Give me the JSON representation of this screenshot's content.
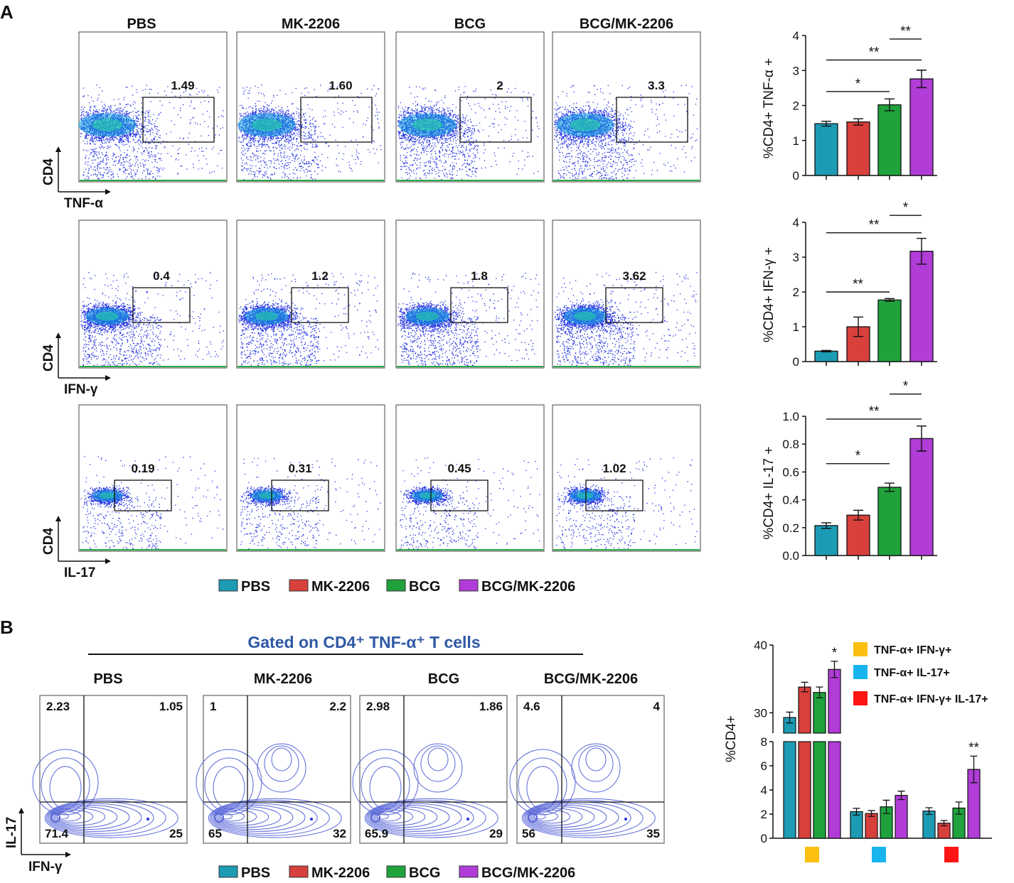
{
  "panel_labels": {
    "a": "A",
    "b": "B"
  },
  "colors": {
    "PBS": "#1d9bb4",
    "MK-2206": "#d8403c",
    "BCG": "#1fa23c",
    "BCG/MK-2206": "#b13cd8",
    "dots": "#2030e0",
    "contour": "#5866d8"
  },
  "groups": [
    "PBS",
    "MK-2206",
    "BCG",
    "BCG/MK-2206"
  ],
  "flow_rows": [
    {
      "x_axis": "TNF-α",
      "y_axis": "CD4",
      "gate_values": [
        "1.49",
        "1.60",
        "2",
        "3.3"
      ]
    },
    {
      "x_axis": "IFN-γ",
      "y_axis": "CD4",
      "gate_values": [
        "0.4",
        "1.2",
        "1.8",
        "3.62"
      ]
    },
    {
      "x_axis": "IL-17",
      "y_axis": "CD4",
      "gate_values": [
        "0.19",
        "0.31",
        "0.45",
        "1.02"
      ]
    }
  ],
  "legend": [
    "PBS",
    "MK-2206",
    "BCG",
    "BCG/MK-2206"
  ],
  "gated_title": "Gated on CD4⁺ TNF-α⁺ T cells",
  "contour_axes": {
    "x": "IFN-γ",
    "y": "IL-17"
  },
  "quadrants": [
    {
      "ul": "2.23",
      "ur": "1.05",
      "ll": "71.4",
      "lr": "25"
    },
    {
      "ul": "1",
      "ur": "2.2",
      "ll": "65",
      "lr": "32"
    },
    {
      "ul": "2.98",
      "ur": "1.86",
      "ll": "65.9",
      "lr": "29"
    },
    {
      "ul": "4.6",
      "ur": "4",
      "ll": "56",
      "lr": "35"
    }
  ],
  "chart_data": [
    {
      "type": "bar",
      "ylabel": "%CD4+ TNF-α +",
      "categories": [
        "PBS",
        "MK-2206",
        "BCG",
        "BCG/MK-2206"
      ],
      "values": [
        1.48,
        1.53,
        2.02,
        2.76
      ],
      "errors": [
        0.07,
        0.09,
        0.17,
        0.25
      ],
      "ylim": [
        0,
        4
      ],
      "ticks": [
        "0",
        "1",
        "2",
        "3",
        "4"
      ],
      "significance": [
        {
          "from": 0,
          "to": 2,
          "label": "*",
          "y": 2.4
        },
        {
          "from": 0,
          "to": 3,
          "label": "**",
          "y": 3.3
        },
        {
          "from": 2,
          "to": 3,
          "label": "**",
          "y": 3.9
        }
      ]
    },
    {
      "type": "bar",
      "ylabel": "%CD4+ IFN-γ +",
      "categories": [
        "PBS",
        "MK-2206",
        "BCG",
        "BCG/MK-2206"
      ],
      "values": [
        0.3,
        1.0,
        1.77,
        3.17
      ],
      "errors": [
        0.02,
        0.28,
        0.04,
        0.37
      ],
      "ylim": [
        0,
        4
      ],
      "ticks": [
        "0",
        "1",
        "2",
        "3",
        "4"
      ],
      "significance": [
        {
          "from": 0,
          "to": 2,
          "label": "**",
          "y": 2.0
        },
        {
          "from": 0,
          "to": 3,
          "label": "**",
          "y": 3.7
        },
        {
          "from": 2,
          "to": 3,
          "label": "*",
          "y": 4.2
        }
      ]
    },
    {
      "type": "bar",
      "ylabel": "%CD4+ IL-17 +",
      "categories": [
        "PBS",
        "MK-2206",
        "BCG",
        "BCG/MK-2206"
      ],
      "values": [
        0.215,
        0.29,
        0.49,
        0.84
      ],
      "errors": [
        0.02,
        0.035,
        0.03,
        0.09
      ],
      "ylim": [
        0,
        1.0
      ],
      "ticks": [
        "0.0",
        "0.2",
        "0.4",
        "0.6",
        "0.8",
        "1.0"
      ],
      "significance": [
        {
          "from": 0,
          "to": 2,
          "label": "*",
          "y": 0.66
        },
        {
          "from": 0,
          "to": 3,
          "label": "**",
          "y": 0.98
        },
        {
          "from": 2,
          "to": 3,
          "label": "*",
          "y": 1.16
        }
      ]
    },
    {
      "type": "grouped_bar",
      "ylabel": "%CD4+",
      "categories": [
        "TNF-α+ IFN-γ+",
        "TNF-α+ IL-17+",
        "TNF-α+ IFN-γ+ IL-17+"
      ],
      "category_colors": [
        "#fbbf10",
        "#17b4ee",
        "#ff1414"
      ],
      "series": [
        {
          "name": "PBS",
          "values": [
            29.3,
            2.2,
            2.25
          ],
          "errors": [
            0.8,
            0.28,
            0.28
          ]
        },
        {
          "name": "MK-2206",
          "values": [
            33.8,
            2.05,
            1.25
          ],
          "errors": [
            0.7,
            0.24,
            0.22
          ]
        },
        {
          "name": "BCG",
          "values": [
            33.0,
            2.6,
            2.5
          ],
          "errors": [
            0.8,
            0.55,
            0.5
          ]
        },
        {
          "name": "BCG/MK-2206",
          "values": [
            36.4,
            3.55,
            5.7
          ],
          "errors": [
            1.2,
            0.35,
            1.1
          ]
        }
      ],
      "broken_axis": {
        "lower": [
          0,
          8
        ],
        "upper": [
          27,
          40
        ]
      },
      "ticks_lower": [
        "0",
        "2",
        "4",
        "6",
        "8"
      ],
      "ticks_upper": [
        "30",
        "40"
      ],
      "significance_marks": [
        {
          "category": 0,
          "series": 3,
          "label": "*"
        },
        {
          "category": 2,
          "series": 3,
          "label": "**"
        }
      ]
    }
  ]
}
